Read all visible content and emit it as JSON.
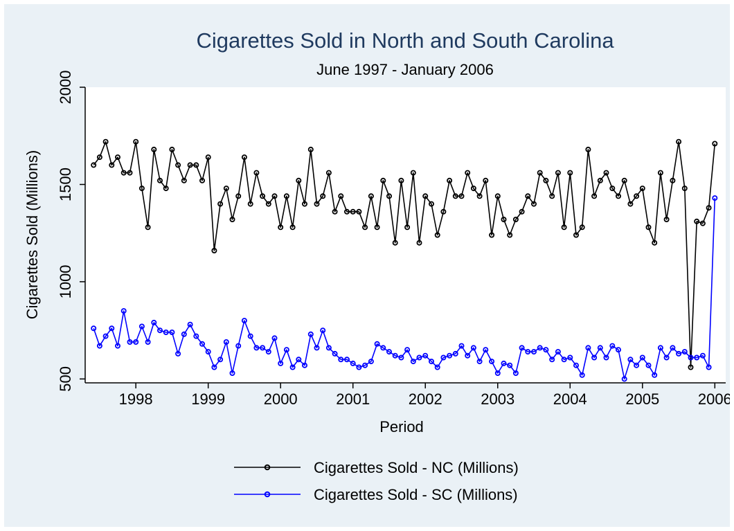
{
  "chart_data": {
    "type": "line",
    "title": "Cigarettes Sold in North and South Carolina",
    "subtitle": "June 1997 - January 2006",
    "xlabel": "Period",
    "ylabel": "Cigarettes Sold (Millions)",
    "xlim": [
      1997.3,
      2006.15
    ],
    "ylim": [
      480,
      2000
    ],
    "x_ticks": [
      1998,
      1999,
      2000,
      2001,
      2002,
      2003,
      2004,
      2005,
      2006
    ],
    "y_ticks": [
      500,
      1000,
      1500,
      2000
    ],
    "x_tick_labels": [
      "1998",
      "1999",
      "2000",
      "2001",
      "2002",
      "2003",
      "2004",
      "2005",
      "2006"
    ],
    "y_tick_labels": [
      "500",
      "1000",
      "1500",
      "2000"
    ],
    "grid": false,
    "legend_position": "bottom",
    "x_start": "1997-06",
    "x_end": "2006-01",
    "series": [
      {
        "name": "Cigarettes Sold - NC (Millions)",
        "color": "#000000",
        "values": [
          1600,
          1640,
          1720,
          1600,
          1640,
          1560,
          1560,
          1720,
          1480,
          1280,
          1680,
          1520,
          1480,
          1680,
          1600,
          1520,
          1600,
          1600,
          1520,
          1640,
          1160,
          1400,
          1480,
          1320,
          1440,
          1640,
          1400,
          1560,
          1440,
          1400,
          1440,
          1280,
          1440,
          1280,
          1520,
          1400,
          1680,
          1400,
          1440,
          1560,
          1360,
          1440,
          1360,
          1360,
          1360,
          1280,
          1440,
          1280,
          1520,
          1440,
          1200,
          1520,
          1280,
          1560,
          1200,
          1440,
          1400,
          1240,
          1360,
          1520,
          1440,
          1440,
          1560,
          1480,
          1440,
          1520,
          1240,
          1440,
          1320,
          1240,
          1320,
          1360,
          1440,
          1400,
          1560,
          1520,
          1440,
          1560,
          1280,
          1560,
          1240,
          1280,
          1680,
          1440,
          1520,
          1560,
          1480,
          1440,
          1520,
          1400,
          1440,
          1480,
          1280,
          1200,
          1560,
          1320,
          1520,
          1720,
          1480,
          560,
          1310,
          1300,
          1380,
          1710
        ]
      },
      {
        "name": "Cigarettes Sold - SC (Millions)",
        "color": "#0000ff",
        "values": [
          760,
          670,
          720,
          760,
          670,
          850,
          690,
          690,
          770,
          690,
          790,
          750,
          740,
          740,
          630,
          730,
          780,
          720,
          680,
          640,
          560,
          600,
          690,
          530,
          670,
          800,
          720,
          660,
          660,
          640,
          710,
          580,
          650,
          560,
          600,
          570,
          730,
          660,
          750,
          660,
          630,
          600,
          600,
          580,
          560,
          570,
          590,
          680,
          660,
          640,
          620,
          610,
          650,
          590,
          610,
          620,
          590,
          560,
          610,
          620,
          630,
          670,
          620,
          660,
          590,
          650,
          590,
          530,
          580,
          570,
          530,
          660,
          640,
          640,
          660,
          650,
          600,
          640,
          600,
          610,
          570,
          520,
          660,
          610,
          660,
          610,
          670,
          650,
          500,
          600,
          570,
          610,
          570,
          520,
          660,
          610,
          660,
          630,
          640,
          610,
          610,
          620,
          560,
          1430
        ]
      }
    ]
  }
}
